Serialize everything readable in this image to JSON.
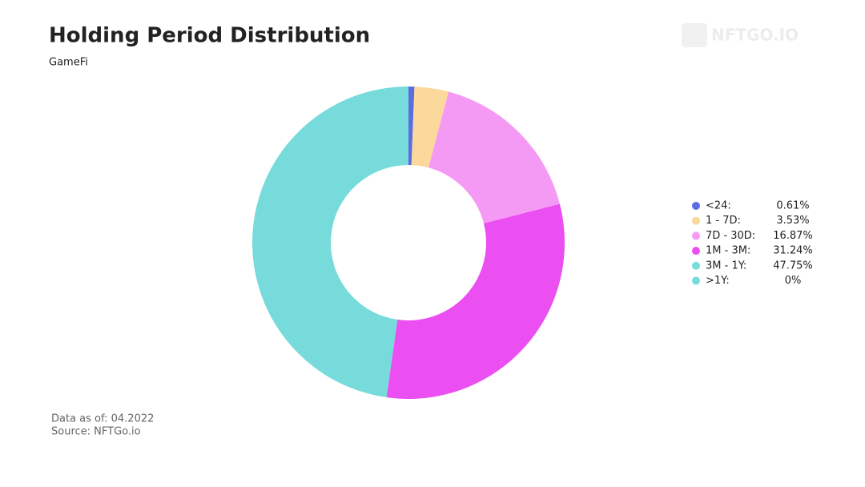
{
  "chart_data": {
    "type": "donut",
    "title": "Holding Period Distribution",
    "subtitle": "GameFi",
    "watermark": "NFTGO.IO",
    "categories": [
      "<24:",
      "1 - 7D:",
      "7D - 30D:",
      "1M - 3M:",
      "3M - 1Y:",
      ">1Y:"
    ],
    "values": [
      0.61,
      3.53,
      16.87,
      31.24,
      47.75,
      0
    ],
    "value_labels": [
      "0.61%",
      "3.53%",
      "16.87%",
      "31.24%",
      "47.75%",
      "0%"
    ],
    "colors": [
      "#5b6ee1",
      "#fbd89b",
      "#f59af4",
      "#eb4ff1",
      "#76dbda",
      "#76dbda"
    ],
    "legend": "right",
    "footnotes": [
      "Data as of: 04.2022",
      "Source: NFTGo.io"
    ]
  }
}
